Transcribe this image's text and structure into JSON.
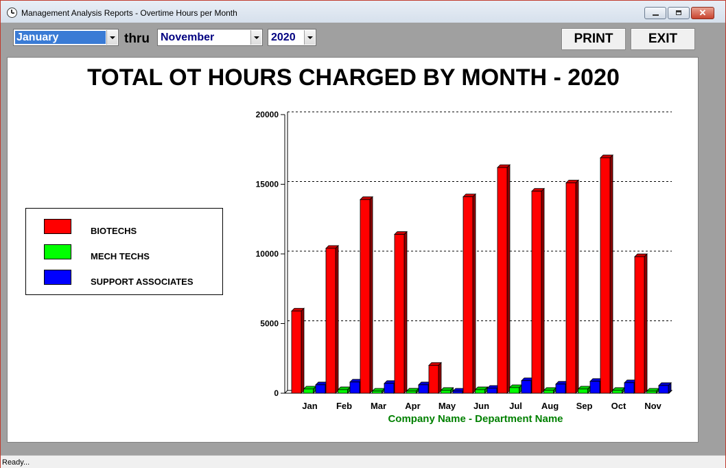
{
  "window": {
    "title": "Management Analysis Reports - Overtime Hours per Month"
  },
  "toolbar": {
    "from_month": "January",
    "thru_label": "thru",
    "to_month": "November",
    "year": "2020",
    "print_label": "PRINT",
    "exit_label": "EXIT"
  },
  "legend": {
    "items": [
      {
        "label": "BIOTECHS",
        "color": "#ff0000"
      },
      {
        "label": "MECH TECHS",
        "color": "#00ff00"
      },
      {
        "label": "SUPPORT ASSOCIATES",
        "color": "#0000ff"
      }
    ]
  },
  "chart_data": {
    "type": "bar",
    "title": "TOTAL OT HOURS CHARGED BY MONTH - 2020",
    "xlabel": "Company Name - Department Name",
    "ylabel": "",
    "ylim": [
      0,
      20000
    ],
    "yticks": [
      "0",
      "5000",
      "10000",
      "15000",
      "20000"
    ],
    "grid": true,
    "legend_position": "left",
    "categories": [
      "Jan",
      "Feb",
      "Mar",
      "Apr",
      "May",
      "Jun",
      "Jul",
      "Aug",
      "Sep",
      "Oct",
      "Nov"
    ],
    "series": [
      {
        "name": "BIOTECHS",
        "color": "#ff0000",
        "values": [
          5900,
          10400,
          13900,
          11400,
          2000,
          14100,
          16200,
          14500,
          15100,
          16900,
          9800
        ]
      },
      {
        "name": "MECH TECHS",
        "color": "#00ff00",
        "values": [
          300,
          250,
          100,
          150,
          200,
          250,
          400,
          200,
          300,
          200,
          0
        ]
      },
      {
        "name": "SUPPORT ASSOCIATES",
        "color": "#0000ff",
        "values": [
          600,
          800,
          700,
          600,
          0,
          350,
          900,
          650,
          850,
          750,
          550
        ]
      }
    ]
  },
  "status": {
    "text": "Ready..."
  }
}
